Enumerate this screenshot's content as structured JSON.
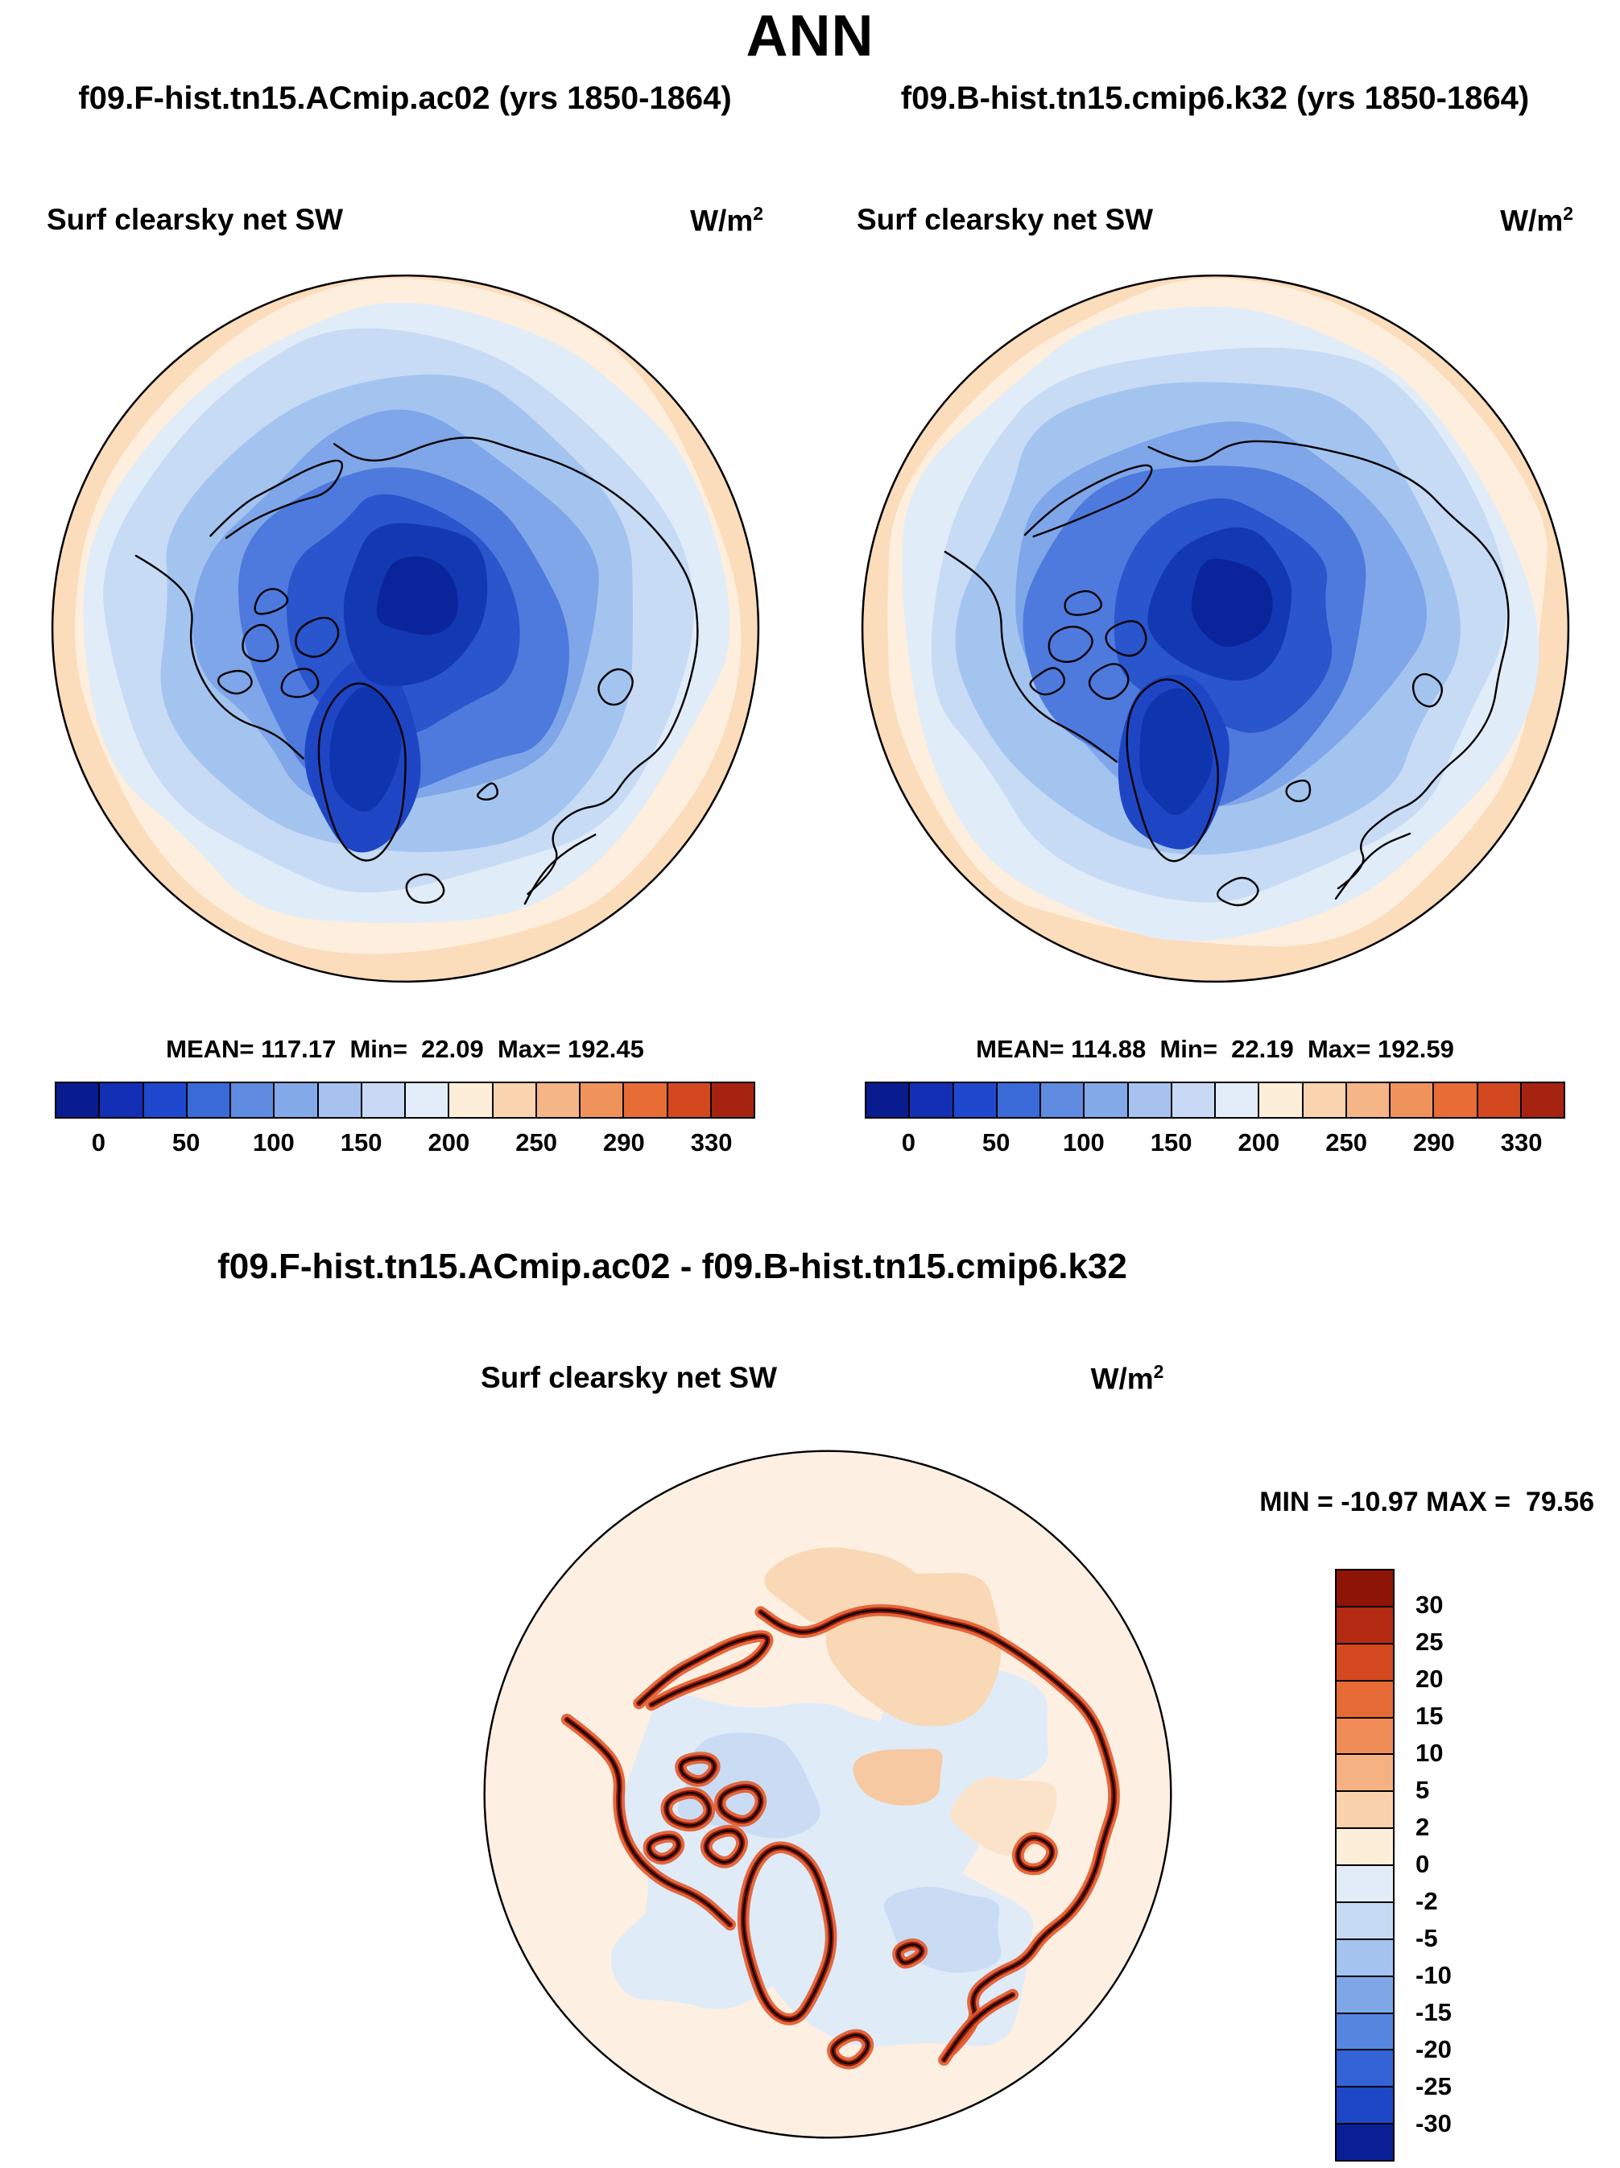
{
  "title": "ANN",
  "panels": [
    {
      "run_title": "f09.F-hist.tn15.ACmip.ac02 (yrs 1850-1864)",
      "field_label": "Surf clearsky net SW",
      "units_base": "W/m",
      "units_exp": "2",
      "stats_line": "MEAN= 117.17  Min=  22.09  Max= 192.45"
    },
    {
      "run_title": "f09.B-hist.tn15.cmip6.k32 (yrs 1850-1864)",
      "field_label": "Surf clearsky net SW",
      "units_base": "W/m",
      "units_exp": "2",
      "stats_line": "MEAN= 114.88  Min=  22.19  Max= 192.59"
    }
  ],
  "diff": {
    "title": "f09.F-hist.tn15.ACmip.ac02 - f09.B-hist.tn15.cmip6.k32",
    "field_label": "Surf clearsky net SW",
    "units_base": "W/m",
    "units_exp": "2",
    "minmax_line": "MIN = -10.97 MAX =  79.56"
  },
  "chart_data": [
    {
      "type": "heatmap",
      "projection": "north-polar-stereographic",
      "panel": "left",
      "title": "f09.F-hist.tn15.ACmip.ac02 (yrs 1850-1864)",
      "variable": "Surf clearsky net SW",
      "units": "W/m2",
      "season": "ANN",
      "stats": {
        "mean": 117.17,
        "min": 22.09,
        "max": 192.45
      },
      "levels": [
        0,
        25,
        50,
        75,
        100,
        125,
        150,
        175,
        200,
        225,
        250,
        270,
        290,
        310,
        330
      ],
      "tick_labels": [
        "0",
        "50",
        "100",
        "150",
        "200",
        "250",
        "290",
        "330"
      ],
      "legend_position": "bottom",
      "palette": [
        "#081c8f",
        "#122fb5",
        "#1e49cf",
        "#3a6ad8",
        "#5f8ce1",
        "#84a9e9",
        "#a7c2ef",
        "#c7d9f4",
        "#e2edf9",
        "#fdeeda",
        "#fad4ae",
        "#f6b586",
        "#f0925c",
        "#e76c36",
        "#d3481e",
        "#a62310"
      ]
    },
    {
      "type": "heatmap",
      "projection": "north-polar-stereographic",
      "panel": "right",
      "title": "f09.B-hist.tn15.cmip6.k32 (yrs 1850-1864)",
      "variable": "Surf clearsky net SW",
      "units": "W/m2",
      "season": "ANN",
      "stats": {
        "mean": 114.88,
        "min": 22.19,
        "max": 192.59
      },
      "levels": [
        0,
        25,
        50,
        75,
        100,
        125,
        150,
        175,
        200,
        225,
        250,
        270,
        290,
        310,
        330
      ],
      "tick_labels": [
        "0",
        "50",
        "100",
        "150",
        "200",
        "250",
        "290",
        "330"
      ],
      "legend_position": "bottom",
      "palette": [
        "#081c8f",
        "#122fb5",
        "#1e49cf",
        "#3a6ad8",
        "#5f8ce1",
        "#84a9e9",
        "#a7c2ef",
        "#c7d9f4",
        "#e2edf9",
        "#fdeeda",
        "#fad4ae",
        "#f6b586",
        "#f0925c",
        "#e76c36",
        "#d3481e",
        "#a62310"
      ]
    },
    {
      "type": "heatmap",
      "projection": "north-polar-stereographic",
      "panel": "difference",
      "title": "f09.F-hist.tn15.ACmip.ac02 - f09.B-hist.tn15.cmip6.k32",
      "variable": "Surf clearsky net SW",
      "units": "W/m2",
      "season": "ANN",
      "stats": {
        "min": -10.97,
        "max": 79.56
      },
      "levels": [
        -30,
        -25,
        -20,
        -15,
        -10,
        -5,
        -2,
        0,
        2,
        5,
        10,
        15,
        20,
        25,
        30
      ],
      "tick_labels": [
        "30",
        "25",
        "20",
        "15",
        "10",
        "5",
        "2",
        "0",
        "-2",
        "-5",
        "-10",
        "-15",
        "-20",
        "-25",
        "-30"
      ],
      "legend_position": "right",
      "palette_top_to_bottom": [
        "#8f1408",
        "#b52a12",
        "#d4491f",
        "#e66a35",
        "#f08c57",
        "#f6b183",
        "#fad2ac",
        "#fdeeda",
        "#e2ecf8",
        "#c7daf4",
        "#a4c4ef",
        "#7ea7e8",
        "#5786e0",
        "#3363d6",
        "#1d47c6",
        "#0a1f96"
      ]
    }
  ]
}
